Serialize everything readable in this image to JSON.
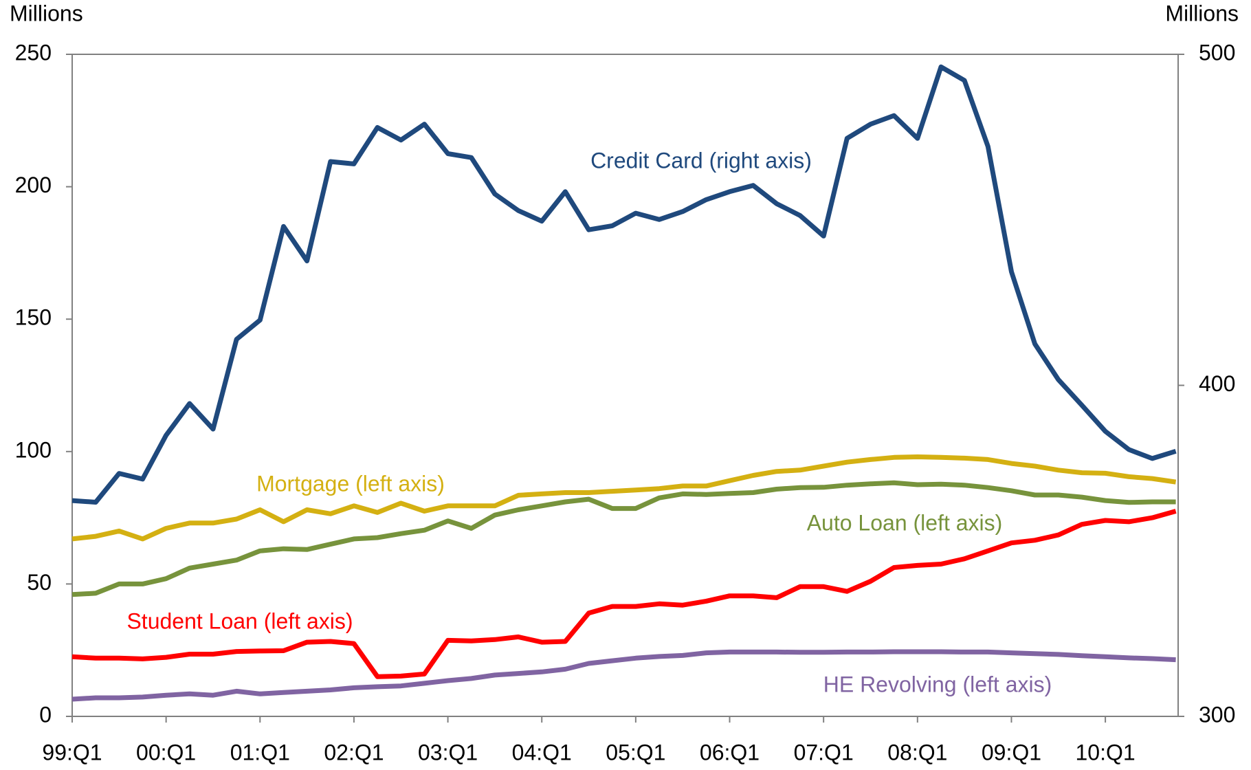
{
  "chart_data": {
    "type": "line",
    "y_label": "Millions",
    "y2_label": "Millions",
    "categories": [
      "99:Q1",
      null,
      null,
      null,
      "00:Q1",
      null,
      null,
      null,
      "01:Q1",
      null,
      null,
      null,
      "02:Q1",
      null,
      null,
      null,
      "03:Q1",
      null,
      null,
      null,
      "04:Q1",
      null,
      null,
      null,
      "05:Q1",
      null,
      null,
      null,
      "06:Q1",
      null,
      null,
      null,
      "07:Q1",
      null,
      null,
      null,
      "08:Q1",
      null,
      null,
      null,
      "09:Q1",
      null,
      null,
      null,
      "10:Q1",
      null,
      null,
      null
    ],
    "ylim": [
      0,
      250
    ],
    "yticks": [
      0,
      50,
      100,
      150,
      200,
      250
    ],
    "y2lim": [
      300,
      500
    ],
    "y2ticks": [
      300,
      400,
      500
    ],
    "series": [
      {
        "name": "Credit Card (right axis)",
        "color": "#1f497d",
        "axis": "y2",
        "values": [
          365.2,
          364.7,
          373.4,
          371.7,
          384.9,
          394.5,
          386.8,
          413.9,
          419.7,
          448.0,
          437.6,
          467.6,
          466.9,
          477.9,
          474.1,
          478.9,
          470.0,
          468.8,
          457.8,
          452.8,
          449.6,
          458.5,
          447.0,
          448.2,
          452.0,
          450.1,
          452.5,
          456.1,
          458.5,
          460.4,
          454.9,
          451.3,
          445.1,
          474.6,
          478.9,
          481.5,
          474.6,
          496.2,
          492.1,
          472.2,
          434.3,
          412.5,
          401.7,
          394.0,
          386.1,
          380.6,
          377.9,
          380.1
        ]
      },
      {
        "name": "Mortgage (left axis)",
        "color": "#d4b012",
        "values": [
          67,
          68,
          70,
          67,
          71,
          73,
          73,
          74.5,
          78,
          73.5,
          78,
          76.5,
          79.5,
          77,
          80.5,
          77.5,
          79.5,
          79.5,
          79.5,
          83.5,
          84,
          84.5,
          84.5,
          85,
          85.5,
          86,
          87,
          87,
          89,
          91,
          92.5,
          93,
          94.5,
          96,
          97,
          97.8,
          98,
          97.8,
          97.5,
          97,
          95.5,
          94.5,
          93,
          92,
          91.8,
          90.5,
          89.8,
          88.5
        ]
      },
      {
        "name": "Auto Loan (left axis)",
        "color": "#77933c",
        "values": [
          46,
          46.5,
          50,
          50,
          52,
          56,
          57.5,
          59,
          62.5,
          63.3,
          63,
          65,
          67,
          67.5,
          69,
          70.3,
          73.8,
          71,
          76,
          78,
          79.5,
          81,
          82,
          78.5,
          78.5,
          82.5,
          84,
          83.8,
          84.2,
          84.5,
          85.8,
          86.4,
          86.5,
          87.3,
          87.8,
          88.2,
          87.5,
          87.7,
          87.3,
          86.4,
          85.2,
          83.6,
          83.6,
          82.8,
          81.5,
          80.8,
          81,
          81
        ]
      },
      {
        "name": "Student Loan (left axis)",
        "color": "#ff0000",
        "values": [
          22.5,
          22,
          22,
          21.7,
          22.3,
          23.5,
          23.5,
          24.5,
          24.7,
          24.8,
          28,
          28.3,
          27.5,
          15,
          15.2,
          16,
          28.7,
          28.5,
          29,
          30,
          28,
          28.3,
          39,
          41.5,
          41.5,
          42.5,
          42,
          43.5,
          45.5,
          45.5,
          44.8,
          49,
          49,
          47.2,
          51,
          56.2,
          57,
          57.5,
          59.5,
          62.5,
          65.5,
          66.5,
          68.5,
          72.5,
          74,
          73.5,
          75,
          77.5
        ]
      },
      {
        "name": "HE Revolving (left axis)",
        "color": "#8064a2",
        "values": [
          6.5,
          7,
          7,
          7.3,
          8,
          8.5,
          8,
          9.5,
          8.5,
          9,
          9.5,
          10,
          10.8,
          11.2,
          11.5,
          12.5,
          13.5,
          14.3,
          15.6,
          16.2,
          16.8,
          17.8,
          20,
          21,
          22,
          22.6,
          23,
          24,
          24.3,
          24.3,
          24.3,
          24.2,
          24.2,
          24.3,
          24.3,
          24.4,
          24.4,
          24.4,
          24.3,
          24.3,
          24,
          23.7,
          23.4,
          22.9,
          22.5,
          22.1,
          21.8,
          21.4
        ]
      }
    ]
  }
}
